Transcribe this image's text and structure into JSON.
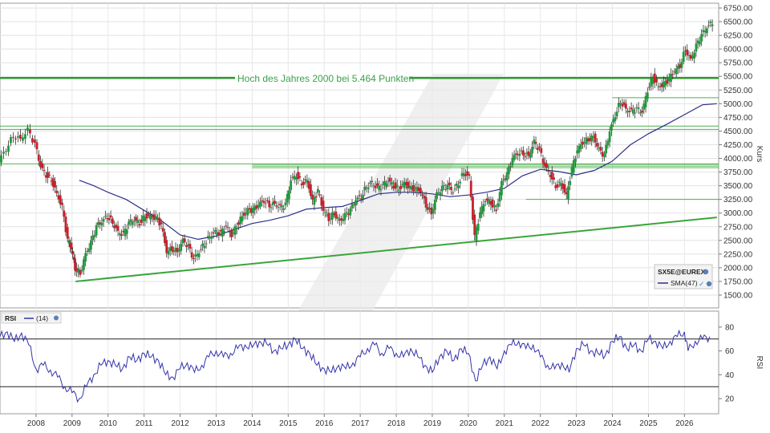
{
  "chart_data": [
    {
      "type": "candlestick",
      "title": "",
      "ylabel": "Kurs",
      "y_ticks": [
        "1500.00",
        "1750.00",
        "2000.00",
        "2250.00",
        "2500.00",
        "2750.00",
        "3000.00",
        "3250.00",
        "3500.00",
        "3750.00",
        "4000.00",
        "4250.00",
        "4500.00",
        "4750.00",
        "5000.00",
        "5250.00",
        "5500.00",
        "5750.00",
        "6000.00",
        "6250.00",
        "6500.00",
        "6750.00"
      ],
      "ylim": [
        1500,
        6750
      ],
      "x_ticks": [
        "2008",
        "2009",
        "2010",
        "2011",
        "2012",
        "2013",
        "2014",
        "2015",
        "2016",
        "2017",
        "2018",
        "2019",
        "2020",
        "2021",
        "2022",
        "2023",
        "2024",
        "2025",
        "2026"
      ],
      "annotation": "Hoch des Jahres 2000 bei 5.464 Punkten",
      "horizontal_levels": [
        5470,
        5110,
        4590,
        4530,
        3890,
        3860,
        3830,
        3250
      ],
      "trendlines": [
        {
          "from": [
            2009.1,
            1750
          ],
          "to": [
            2026.9,
            2920
          ]
        }
      ],
      "legend": {
        "symbol": "SX5E@EUREX",
        "sma_label": "SMA(47)",
        "position": "bottom-right"
      },
      "series_close": [
        [
          2007.0,
          3960
        ],
        [
          2007.2,
          4180
        ],
        [
          2007.4,
          4420
        ],
        [
          2007.6,
          4350
        ],
        [
          2007.8,
          4520
        ],
        [
          2008.0,
          4250
        ],
        [
          2008.15,
          3850
        ],
        [
          2008.3,
          3700
        ],
        [
          2008.45,
          3620
        ],
        [
          2008.6,
          3350
        ],
        [
          2008.75,
          3100
        ],
        [
          2008.9,
          2500
        ],
        [
          2009.0,
          2350
        ],
        [
          2009.1,
          2000
        ],
        [
          2009.25,
          1900
        ],
        [
          2009.4,
          2250
        ],
        [
          2009.55,
          2450
        ],
        [
          2009.7,
          2750
        ],
        [
          2009.85,
          2850
        ],
        [
          2010.0,
          2950
        ],
        [
          2010.15,
          2830
        ],
        [
          2010.3,
          2650
        ],
        [
          2010.45,
          2600
        ],
        [
          2010.6,
          2820
        ],
        [
          2010.75,
          2880
        ],
        [
          2010.9,
          2820
        ],
        [
          2011.05,
          2950
        ],
        [
          2011.2,
          2930
        ],
        [
          2011.35,
          2900
        ],
        [
          2011.5,
          2780
        ],
        [
          2011.65,
          2300
        ],
        [
          2011.8,
          2350
        ],
        [
          2011.95,
          2300
        ],
        [
          2012.1,
          2500
        ],
        [
          2012.25,
          2380
        ],
        [
          2012.4,
          2150
        ],
        [
          2012.55,
          2300
        ],
        [
          2012.7,
          2450
        ],
        [
          2012.85,
          2580
        ],
        [
          2013.0,
          2650
        ],
        [
          2013.15,
          2620
        ],
        [
          2013.3,
          2760
        ],
        [
          2013.45,
          2600
        ],
        [
          2013.6,
          2780
        ],
        [
          2013.75,
          2950
        ],
        [
          2013.9,
          3050
        ],
        [
          2014.05,
          3050
        ],
        [
          2014.2,
          3150
        ],
        [
          2014.35,
          3230
        ],
        [
          2014.5,
          3150
        ],
        [
          2014.65,
          3170
        ],
        [
          2014.8,
          3100
        ],
        [
          2014.95,
          3150
        ],
        [
          2015.1,
          3600
        ],
        [
          2015.25,
          3700
        ],
        [
          2015.4,
          3550
        ],
        [
          2015.55,
          3600
        ],
        [
          2015.7,
          3200
        ],
        [
          2015.85,
          3400
        ],
        [
          2016.0,
          3050
        ],
        [
          2016.15,
          2900
        ],
        [
          2016.3,
          3000
        ],
        [
          2016.45,
          2850
        ],
        [
          2016.6,
          2950
        ],
        [
          2016.75,
          3050
        ],
        [
          2016.9,
          3250
        ],
        [
          2017.05,
          3300
        ],
        [
          2017.2,
          3500
        ],
        [
          2017.35,
          3550
        ],
        [
          2017.5,
          3450
        ],
        [
          2017.65,
          3500
        ],
        [
          2017.8,
          3600
        ],
        [
          2017.95,
          3500
        ],
        [
          2018.1,
          3450
        ],
        [
          2018.25,
          3550
        ],
        [
          2018.4,
          3450
        ],
        [
          2018.55,
          3450
        ],
        [
          2018.7,
          3400
        ],
        [
          2018.85,
          3150
        ],
        [
          2019.0,
          3000
        ],
        [
          2019.15,
          3350
        ],
        [
          2019.3,
          3450
        ],
        [
          2019.45,
          3500
        ],
        [
          2019.6,
          3400
        ],
        [
          2019.75,
          3550
        ],
        [
          2019.9,
          3750
        ],
        [
          2020.05,
          3650
        ],
        [
          2020.2,
          2550
        ],
        [
          2020.35,
          3000
        ],
        [
          2020.5,
          3250
        ],
        [
          2020.65,
          3200
        ],
        [
          2020.8,
          3050
        ],
        [
          2020.95,
          3550
        ],
        [
          2021.1,
          3700
        ],
        [
          2021.25,
          4000
        ],
        [
          2021.4,
          4100
        ],
        [
          2021.55,
          4100
        ],
        [
          2021.7,
          4050
        ],
        [
          2021.85,
          4300
        ],
        [
          2022.0,
          4150
        ],
        [
          2022.15,
          3850
        ],
        [
          2022.3,
          3700
        ],
        [
          2022.45,
          3500
        ],
        [
          2022.6,
          3550
        ],
        [
          2022.75,
          3300
        ],
        [
          2022.9,
          3800
        ],
        [
          2023.05,
          4150
        ],
        [
          2023.2,
          4300
        ],
        [
          2023.35,
          4350
        ],
        [
          2023.5,
          4400
        ],
        [
          2023.65,
          4150
        ],
        [
          2023.8,
          4050
        ],
        [
          2023.95,
          4500
        ],
        [
          2024.1,
          4800
        ],
        [
          2024.25,
          5050
        ],
        [
          2024.4,
          4900
        ],
        [
          2024.55,
          4850
        ],
        [
          2024.7,
          4900
        ],
        [
          2024.85,
          4850
        ],
        [
          2025.0,
          5250
        ],
        [
          2025.15,
          5500
        ],
        [
          2025.3,
          5300
        ],
        [
          2025.45,
          5350
        ],
        [
          2025.6,
          5450
        ],
        [
          2025.75,
          5600
        ],
        [
          2025.9,
          5700
        ],
        [
          2026.05,
          6000
        ],
        [
          2026.2,
          5800
        ],
        [
          2026.35,
          6050
        ],
        [
          2026.5,
          6250
        ],
        [
          2026.65,
          6400
        ],
        [
          2026.8,
          6500
        ]
      ],
      "sma": [
        [
          2009.2,
          3600
        ],
        [
          2009.6,
          3500
        ],
        [
          2010.0,
          3380
        ],
        [
          2010.5,
          3250
        ],
        [
          2011.0,
          3050
        ],
        [
          2011.5,
          2850
        ],
        [
          2012.0,
          2600
        ],
        [
          2012.5,
          2520
        ],
        [
          2013.0,
          2580
        ],
        [
          2013.5,
          2700
        ],
        [
          2014.0,
          2810
        ],
        [
          2014.5,
          2870
        ],
        [
          2015.0,
          2950
        ],
        [
          2015.5,
          3070
        ],
        [
          2016.0,
          3100
        ],
        [
          2016.5,
          3120
        ],
        [
          2017.0,
          3230
        ],
        [
          2017.5,
          3350
        ],
        [
          2018.0,
          3380
        ],
        [
          2018.5,
          3380
        ],
        [
          2019.0,
          3350
        ],
        [
          2019.5,
          3300
        ],
        [
          2020.0,
          3330
        ],
        [
          2020.5,
          3380
        ],
        [
          2021.0,
          3450
        ],
        [
          2021.5,
          3680
        ],
        [
          2022.0,
          3800
        ],
        [
          2022.5,
          3760
        ],
        [
          2023.0,
          3700
        ],
        [
          2023.5,
          3780
        ],
        [
          2024.0,
          3950
        ],
        [
          2024.5,
          4250
        ],
        [
          2025.0,
          4450
        ],
        [
          2025.5,
          4620
        ],
        [
          2026.0,
          4800
        ],
        [
          2026.5,
          4980
        ],
        [
          2026.9,
          5000
        ]
      ]
    },
    {
      "type": "line",
      "title": "",
      "ylabel": "RSI",
      "legend_label": "RSI",
      "param": "(14)",
      "y_ticks": [
        "20",
        "40",
        "60",
        "80"
      ],
      "ylim": [
        10,
        88
      ],
      "reference_lines": [
        70,
        30
      ],
      "series": [
        [
          2007.0,
          72
        ],
        [
          2007.2,
          76
        ],
        [
          2007.4,
          68
        ],
        [
          2007.6,
          75
        ],
        [
          2007.8,
          65
        ],
        [
          2008.0,
          45
        ],
        [
          2008.2,
          48
        ],
        [
          2008.4,
          44
        ],
        [
          2008.6,
          38
        ],
        [
          2008.8,
          30
        ],
        [
          2009.0,
          25
        ],
        [
          2009.2,
          20
        ],
        [
          2009.4,
          30
        ],
        [
          2009.6,
          40
        ],
        [
          2009.8,
          48
        ],
        [
          2010.0,
          52
        ],
        [
          2010.2,
          48
        ],
        [
          2010.4,
          45
        ],
        [
          2010.6,
          55
        ],
        [
          2010.8,
          52
        ],
        [
          2011.0,
          58
        ],
        [
          2011.2,
          55
        ],
        [
          2011.4,
          52
        ],
        [
          2011.6,
          40
        ],
        [
          2011.8,
          38
        ],
        [
          2012.0,
          45
        ],
        [
          2012.2,
          50
        ],
        [
          2012.4,
          42
        ],
        [
          2012.6,
          48
        ],
        [
          2012.8,
          55
        ],
        [
          2013.0,
          60
        ],
        [
          2013.2,
          55
        ],
        [
          2013.4,
          58
        ],
        [
          2013.6,
          62
        ],
        [
          2013.8,
          65
        ],
        [
          2014.0,
          63
        ],
        [
          2014.2,
          68
        ],
        [
          2014.4,
          66
        ],
        [
          2014.6,
          60
        ],
        [
          2014.8,
          62
        ],
        [
          2015.0,
          65
        ],
        [
          2015.2,
          70
        ],
        [
          2015.4,
          62
        ],
        [
          2015.6,
          58
        ],
        [
          2015.8,
          48
        ],
        [
          2016.0,
          45
        ],
        [
          2016.2,
          42
        ],
        [
          2016.4,
          48
        ],
        [
          2016.6,
          45
        ],
        [
          2016.8,
          50
        ],
        [
          2017.0,
          55
        ],
        [
          2017.2,
          62
        ],
        [
          2017.4,
          65
        ],
        [
          2017.6,
          58
        ],
        [
          2017.8,
          62
        ],
        [
          2018.0,
          58
        ],
        [
          2018.2,
          55
        ],
        [
          2018.4,
          62
        ],
        [
          2018.6,
          55
        ],
        [
          2018.8,
          48
        ],
        [
          2019.0,
          42
        ],
        [
          2019.2,
          55
        ],
        [
          2019.4,
          60
        ],
        [
          2019.6,
          52
        ],
        [
          2019.8,
          62
        ],
        [
          2020.0,
          58
        ],
        [
          2020.2,
          35
        ],
        [
          2020.4,
          48
        ],
        [
          2020.6,
          55
        ],
        [
          2020.8,
          45
        ],
        [
          2021.0,
          60
        ],
        [
          2021.2,
          65
        ],
        [
          2021.4,
          68
        ],
        [
          2021.6,
          62
        ],
        [
          2021.8,
          65
        ],
        [
          2022.0,
          55
        ],
        [
          2022.2,
          48
        ],
        [
          2022.4,
          45
        ],
        [
          2022.6,
          50
        ],
        [
          2022.8,
          42
        ],
        [
          2023.0,
          62
        ],
        [
          2023.2,
          65
        ],
        [
          2023.4,
          60
        ],
        [
          2023.6,
          58
        ],
        [
          2023.8,
          56
        ],
        [
          2024.0,
          68
        ],
        [
          2024.2,
          72
        ],
        [
          2024.4,
          62
        ],
        [
          2024.6,
          65
        ],
        [
          2024.8,
          60
        ],
        [
          2025.0,
          70
        ],
        [
          2025.2,
          68
        ],
        [
          2025.4,
          62
        ],
        [
          2025.6,
          68
        ],
        [
          2025.8,
          72
        ],
        [
          2026.0,
          76
        ],
        [
          2026.1,
          60
        ],
        [
          2026.3,
          68
        ],
        [
          2026.5,
          70
        ],
        [
          2026.7,
          72
        ]
      ]
    }
  ]
}
